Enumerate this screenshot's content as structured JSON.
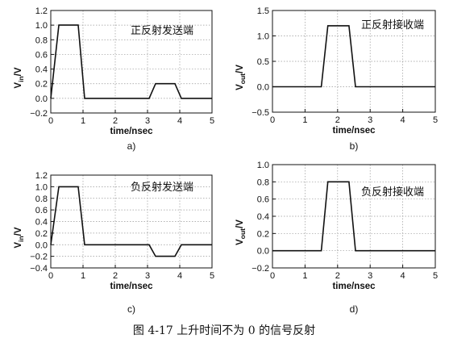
{
  "caption": "图 4-17   上升时间不为 0 的信号反射",
  "chart_data": [
    {
      "type": "line",
      "panel_label": "a)",
      "annotation": "正反射发送端",
      "xlabel": "time/nsec",
      "ylabel_main": "V",
      "ylabel_sub": "in",
      "ylabel_unit": "/V",
      "xlim": [
        0,
        5
      ],
      "ylim": [
        -0.2,
        1.2
      ],
      "xticks": [
        0,
        1,
        2,
        3,
        4,
        5
      ],
      "yticks": [
        -0.2,
        0,
        0.2,
        0.4,
        0.6,
        0.8,
        1.0,
        1.2
      ],
      "ytick_labels": [
        "−0.2",
        "0.0",
        "0.2",
        "0.4",
        "0.6",
        "0.8",
        "1.0",
        "1.2"
      ],
      "grid": true,
      "series": [
        {
          "x": [
            0,
            0.25,
            0.85,
            1.05,
            3.05,
            3.25,
            3.85,
            4.05,
            5
          ],
          "y": [
            0.0,
            1.0,
            1.0,
            0.0,
            0.0,
            0.2,
            0.2,
            0.0,
            0.0
          ]
        }
      ]
    },
    {
      "type": "line",
      "panel_label": "b)",
      "annotation": "正反射接收端",
      "xlabel": "time/nsec",
      "ylabel_main": "V",
      "ylabel_sub": "out",
      "ylabel_unit": "/V",
      "xlim": [
        0,
        5
      ],
      "ylim": [
        -0.5,
        1.5
      ],
      "xticks": [
        0,
        1,
        2,
        3,
        4,
        5
      ],
      "yticks": [
        -0.5,
        0,
        0.5,
        1.0,
        1.5
      ],
      "ytick_labels": [
        "−0.5",
        "0.0",
        "0.5",
        "1.0",
        "1.5"
      ],
      "grid": true,
      "series": [
        {
          "x": [
            0,
            1.5,
            1.7,
            2.35,
            2.55,
            5
          ],
          "y": [
            0.0,
            0.0,
            1.2,
            1.2,
            0.0,
            0.0
          ]
        }
      ]
    },
    {
      "type": "line",
      "panel_label": "c)",
      "annotation": "负反射发送端",
      "xlabel": "time/nsec",
      "ylabel_main": "V",
      "ylabel_sub": "in",
      "ylabel_unit": "/V",
      "xlim": [
        0,
        5
      ],
      "ylim": [
        -0.4,
        1.2
      ],
      "xticks": [
        0,
        1,
        2,
        3,
        4,
        5
      ],
      "yticks": [
        -0.4,
        -0.2,
        0,
        0.2,
        0.4,
        0.6,
        0.8,
        1.0,
        1.2
      ],
      "ytick_labels": [
        "−0.4",
        "−0.2",
        "0.0",
        "0.2",
        "0.4",
        "0.6",
        "0.8",
        "1.0",
        "1.2"
      ],
      "grid": true,
      "series": [
        {
          "x": [
            0,
            0.25,
            0.85,
            1.05,
            3.05,
            3.25,
            3.85,
            4.05,
            5
          ],
          "y": [
            0.0,
            1.0,
            1.0,
            0.0,
            0.0,
            -0.2,
            -0.2,
            0.0,
            0.0
          ]
        }
      ]
    },
    {
      "type": "line",
      "panel_label": "d)",
      "annotation": "负反射接收端",
      "xlabel": "time/nsec",
      "ylabel_main": "V",
      "ylabel_sub": "out",
      "ylabel_unit": "/V",
      "xlim": [
        0,
        5
      ],
      "ylim": [
        -0.2,
        1.0
      ],
      "xticks": [
        0,
        1,
        2,
        3,
        4,
        5
      ],
      "yticks": [
        -0.2,
        0,
        0.2,
        0.4,
        0.6,
        0.8,
        1.0
      ],
      "ytick_labels": [
        "−0.2",
        "0.0",
        "0.2",
        "0.4",
        "0.6",
        "0.8",
        "1.0"
      ],
      "grid": true,
      "series": [
        {
          "x": [
            0,
            1.5,
            1.7,
            2.35,
            2.55,
            5
          ],
          "y": [
            0.0,
            0.0,
            0.8,
            0.8,
            0.0,
            0.0
          ]
        }
      ]
    }
  ]
}
